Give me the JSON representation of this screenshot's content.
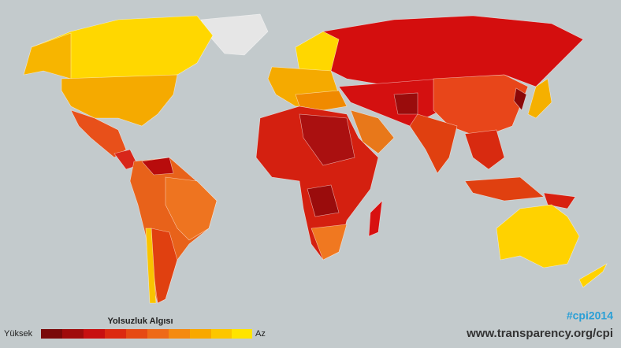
{
  "legend": {
    "title": "Yolsuzluk Algısı",
    "high": "Yüksek",
    "low": "Az"
  },
  "hashtag": "#cpi2014",
  "url": "www.transparency.org/cpi"
}
